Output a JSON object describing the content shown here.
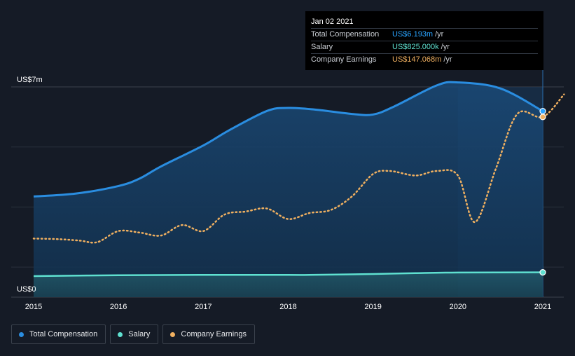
{
  "chart_data": {
    "type": "area",
    "x_ticks": [
      "2015",
      "2016",
      "2017",
      "2018",
      "2019",
      "2020",
      "2021"
    ],
    "y_labels": {
      "top": "US$7m",
      "bottom": "US$0"
    },
    "ylim": [
      0,
      7
    ],
    "series": [
      {
        "name": "Total Compensation",
        "color": "#2a8de0",
        "style": "area-line",
        "points": [
          [
            2015.0,
            3.35
          ],
          [
            2015.5,
            3.45
          ],
          [
            2016.0,
            3.7
          ],
          [
            2016.25,
            3.95
          ],
          [
            2016.5,
            4.35
          ],
          [
            2017.0,
            5.05
          ],
          [
            2017.3,
            5.55
          ],
          [
            2017.75,
            6.2
          ],
          [
            2018.0,
            6.3
          ],
          [
            2018.3,
            6.25
          ],
          [
            2018.75,
            6.1
          ],
          [
            2019.0,
            6.08
          ],
          [
            2019.25,
            6.35
          ],
          [
            2019.75,
            7.05
          ],
          [
            2020.0,
            7.15
          ],
          [
            2020.5,
            6.95
          ],
          [
            2021.0,
            6.193
          ]
        ]
      },
      {
        "name": "Salary",
        "color": "#5fe0d0",
        "style": "area-line",
        "points": [
          [
            2015.0,
            0.7
          ],
          [
            2016.0,
            0.73
          ],
          [
            2017.0,
            0.74
          ],
          [
            2018.0,
            0.74
          ],
          [
            2018.25,
            0.74
          ],
          [
            2019.0,
            0.77
          ],
          [
            2019.5,
            0.8
          ],
          [
            2020.0,
            0.82
          ],
          [
            2021.0,
            0.825
          ]
        ]
      },
      {
        "name": "Company Earnings",
        "color": "#f0b060",
        "style": "dotted",
        "points": [
          [
            2015.0,
            1.95
          ],
          [
            2015.3,
            1.93
          ],
          [
            2015.55,
            1.88
          ],
          [
            2015.75,
            1.83
          ],
          [
            2016.0,
            2.2
          ],
          [
            2016.25,
            2.15
          ],
          [
            2016.5,
            2.05
          ],
          [
            2016.75,
            2.4
          ],
          [
            2017.0,
            2.2
          ],
          [
            2017.25,
            2.75
          ],
          [
            2017.5,
            2.85
          ],
          [
            2017.75,
            2.95
          ],
          [
            2018.0,
            2.6
          ],
          [
            2018.25,
            2.8
          ],
          [
            2018.5,
            2.9
          ],
          [
            2018.75,
            3.35
          ],
          [
            2019.0,
            4.1
          ],
          [
            2019.2,
            4.2
          ],
          [
            2019.5,
            4.05
          ],
          [
            2019.75,
            4.2
          ],
          [
            2020.0,
            4.05
          ],
          [
            2020.2,
            2.5
          ],
          [
            2020.45,
            4.3
          ],
          [
            2020.7,
            6.1
          ],
          [
            2021.0,
            6.0
          ],
          [
            2021.25,
            6.75
          ]
        ]
      }
    ],
    "highlight_range": [
      2020.0,
      2021.0
    ],
    "grid": true,
    "legend_position": "bottom-left"
  },
  "tooltip": {
    "date": "Jan 02 2021",
    "rows": [
      {
        "label": "Total Compensation",
        "value": "US$6.193m",
        "unit": "/yr",
        "color": "#2aa4ff"
      },
      {
        "label": "Salary",
        "value": "US$825.000k",
        "unit": "/yr",
        "color": "#5fe0d0"
      },
      {
        "label": "Company Earnings",
        "value": "US$147.068m",
        "unit": "/yr",
        "color": "#f0b060"
      }
    ]
  },
  "legend": {
    "items": [
      {
        "label": "Total Compensation",
        "color": "#2a8de0"
      },
      {
        "label": "Salary",
        "color": "#5fe0d0"
      },
      {
        "label": "Company Earnings",
        "color": "#f0b060"
      }
    ]
  }
}
